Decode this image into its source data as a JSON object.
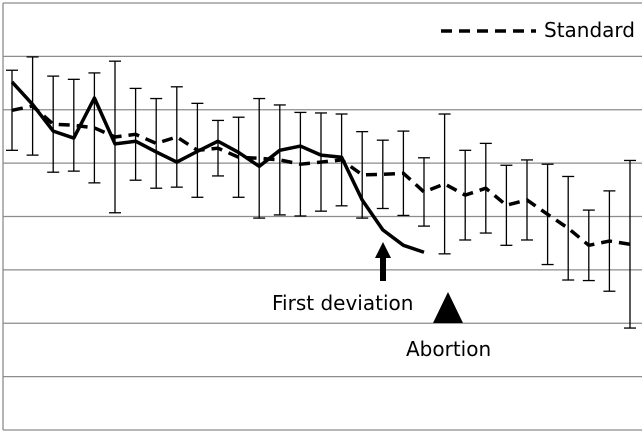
{
  "chart_data": {
    "type": "line",
    "x": [
      0,
      1,
      2,
      3,
      4,
      5,
      6,
      7,
      8,
      9,
      10,
      11,
      12,
      13,
      14,
      15,
      16,
      17,
      18,
      19,
      20,
      21,
      22,
      23,
      24,
      25,
      26,
      27,
      28,
      29,
      30
    ],
    "xlim": [
      0,
      30
    ],
    "ylim": [
      0,
      8
    ],
    "yticks": [
      0,
      1,
      2,
      3,
      4,
      5,
      6,
      7,
      8
    ],
    "grid": true,
    "legend": "top-right",
    "series": [
      {
        "name": "Standard",
        "color": "#000000",
        "style": "dashed",
        "values": [
          5.99,
          6.07,
          5.73,
          5.71,
          5.66,
          5.49,
          5.54,
          5.37,
          5.49,
          5.24,
          5.28,
          5.11,
          5.09,
          5.06,
          4.98,
          5.02,
          5.06,
          4.78,
          4.79,
          4.81,
          4.46,
          4.61,
          4.4,
          4.53,
          4.21,
          4.31,
          4.04,
          3.78,
          3.46,
          3.54,
          3.48
        ],
        "errors": [
          0.75,
          0.92,
          0.9,
          0.86,
          1.03,
          1.42,
          0.86,
          0.84,
          0.94,
          0.88,
          0.52,
          0.75,
          1.12,
          1.03,
          0.97,
          0.92,
          0.86,
          0.81,
          0.64,
          0.79,
          0.64,
          1.31,
          0.84,
          0.84,
          0.75,
          0.75,
          0.94,
          0.97,
          0.66,
          0.94,
          1.57
        ]
      },
      {
        "color": "#000000",
        "style": "solid",
        "values": [
          6.52,
          6.1,
          5.6,
          5.47,
          6.22,
          5.36,
          5.41,
          5.21,
          5.02,
          5.22,
          5.41,
          5.2,
          4.94,
          5.24,
          5.32,
          5.15,
          5.11,
          4.31,
          3.75,
          3.46,
          3.33,
          null,
          null,
          null,
          null,
          null,
          null,
          null,
          null,
          null,
          null
        ]
      }
    ],
    "annotations": [
      "First deviation",
      "Abortion"
    ]
  }
}
